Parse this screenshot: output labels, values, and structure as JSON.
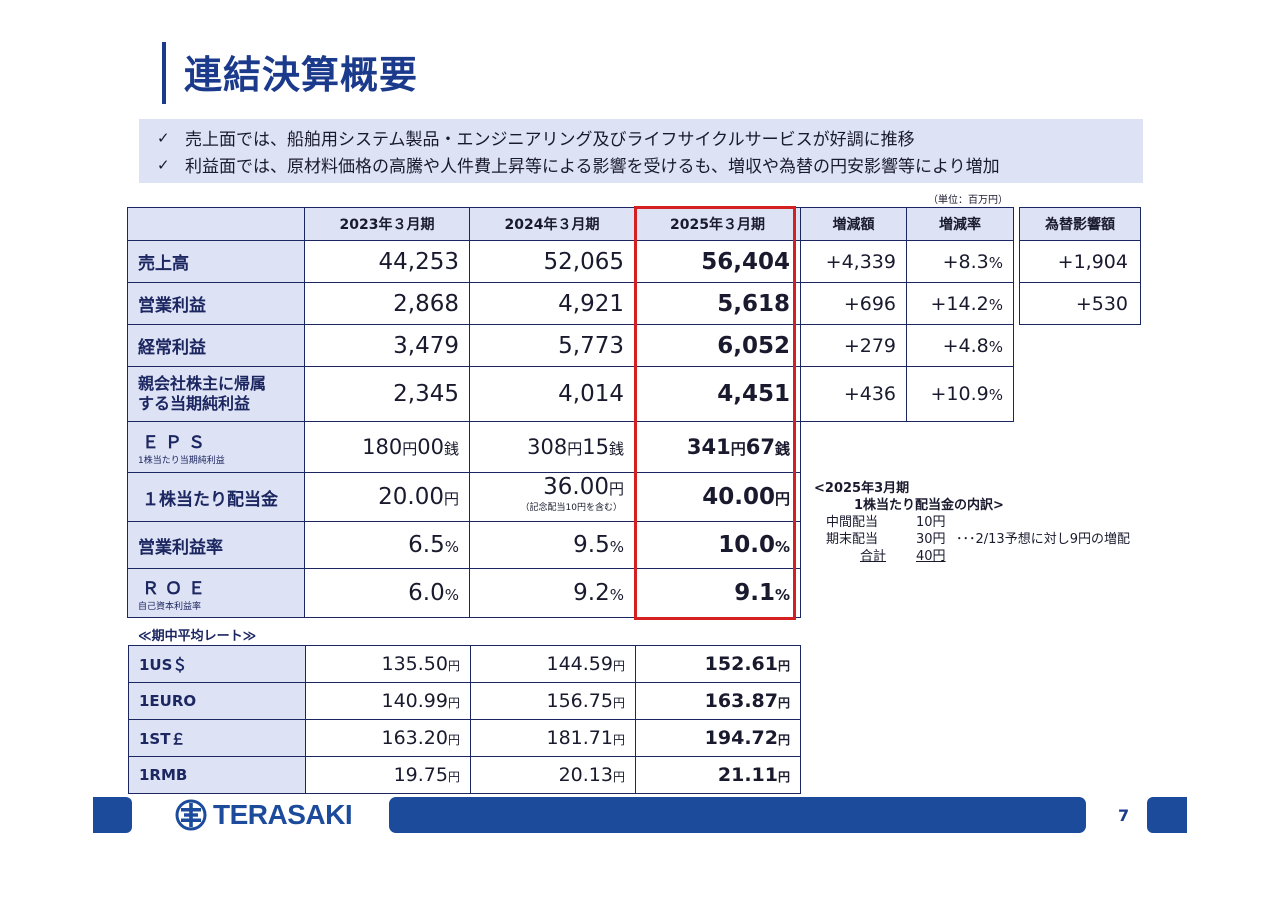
{
  "title": "連結決算概要",
  "summary": [
    {
      "check": "✓",
      "text": "売上面では、船舶用システム製品・エンジニアリング及びライフサイクルサービスが好調に推移"
    },
    {
      "check": "✓",
      "text": "利益面では、原材料価格の高騰や人件費上昇等による影響を受けるも、増収や為替の円安影響等により増加"
    }
  ],
  "unit_note": "（単位：百万円）",
  "main_table": {
    "headers": [
      "2023年３月期",
      "2024年３月期",
      "2025年３月期",
      "増減額",
      "増減率"
    ],
    "rows": [
      {
        "label": "売上高",
        "v1": "44,253",
        "v2": "52,065",
        "v3": "56,404",
        "diff": "+4,339",
        "rate": "+8.3",
        "rate_unit": "%"
      },
      {
        "label": "営業利益",
        "v1": "2,868",
        "v2": "4,921",
        "v3": "5,618",
        "diff": "+696",
        "rate": "+14.2",
        "rate_unit": "%"
      },
      {
        "label": "経常利益",
        "v1": "3,479",
        "v2": "5,773",
        "v3": "6,052",
        "diff": "+279",
        "rate": "+4.8",
        "rate_unit": "%"
      },
      {
        "label_line1": "親会社株主に帰属",
        "label_line2": "する当期純利益",
        "v1": "2,345",
        "v2": "4,014",
        "v3": "4,451",
        "diff": "+436",
        "rate": "+10.9",
        "rate_unit": "%"
      }
    ],
    "eps": {
      "label": "ＥＰＳ",
      "sub": "1株当たり当期純利益",
      "v1": {
        "a": "180",
        "b": "00"
      },
      "v2": {
        "a": "308",
        "b": "15"
      },
      "v3": {
        "a": "341",
        "b": "67"
      },
      "yen": "円",
      "sen": "銭"
    },
    "dividend": {
      "label": "１株当たり配当金",
      "v1": "20.00",
      "v2": "36.00",
      "v3": "40.00",
      "yen": "円",
      "v2_note": "（記念配当10円を含む）"
    },
    "op_margin": {
      "label": "営業利益率",
      "v1": "6.5",
      "v2": "9.5",
      "v3": "10.0",
      "unit": "%"
    },
    "roe": {
      "label": "ＲＯＥ",
      "sub": "自己資本利益率",
      "v1": "6.0",
      "v2": "9.2",
      "v3": "9.1",
      "unit": "%"
    }
  },
  "fx_effect": {
    "header": "為替影響額",
    "values": [
      "+1,904",
      "+530"
    ]
  },
  "rate_caption": "≪期中平均レート≫",
  "rate_table": {
    "yen": "円",
    "rows": [
      {
        "label": "1US＄",
        "v1": "135.50",
        "v2": "144.59",
        "v3": "152.61"
      },
      {
        "label": "1EURO",
        "v1": "140.99",
        "v2": "156.75",
        "v3": "163.87"
      },
      {
        "label": "1ST￡",
        "v1": "163.20",
        "v2": "181.71",
        "v3": "194.72"
      },
      {
        "label": "1RMB",
        "v1": "19.75",
        "v2": "20.13",
        "v3": "21.11"
      }
    ]
  },
  "dividend_breakdown": {
    "heading1": "<2025年3月期",
    "heading2": "1株当たり配当金の内訳>",
    "rows": [
      {
        "k": "中間配当",
        "v": "10円",
        "note": ""
      },
      {
        "k": "期末配当",
        "v": "30円",
        "note": "･･･2/13予想に対し9円の増配"
      },
      {
        "k": "合計",
        "v": "40円",
        "note": ""
      }
    ]
  },
  "footer": {
    "logo_text": "TERASAKI",
    "page_number": "7"
  },
  "colors": {
    "navy": "#1c3a8c",
    "band": "#1c4b9c",
    "header_fill": "#dde3f5",
    "highlight": "#d42020"
  }
}
